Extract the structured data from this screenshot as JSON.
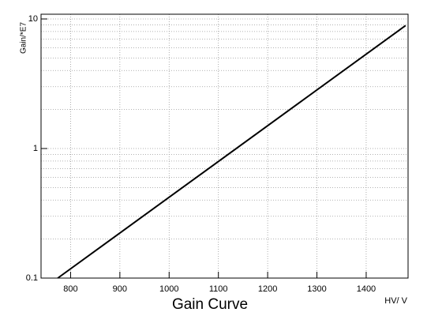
{
  "chart_data": {
    "type": "line",
    "title": "Gain Curve",
    "xlabel": "HV/ V",
    "ylabel": "Gain/*E7",
    "x": [
      774,
      1480
    ],
    "values": [
      0.1,
      8.9
    ],
    "color": "#000000",
    "xlim": [
      740,
      1485
    ],
    "xticks": [
      800,
      900,
      1000,
      1100,
      1200,
      1300,
      1400
    ],
    "ylim": [
      0.1,
      10
    ],
    "yticks": [
      0.1,
      1,
      10
    ],
    "ylog": true,
    "yminorticks": [
      0.2,
      0.3,
      0.4,
      0.5,
      0.6,
      0.7,
      0.8,
      0.9,
      2,
      3,
      4,
      5,
      6,
      7,
      8,
      9
    ],
    "grid": true
  }
}
